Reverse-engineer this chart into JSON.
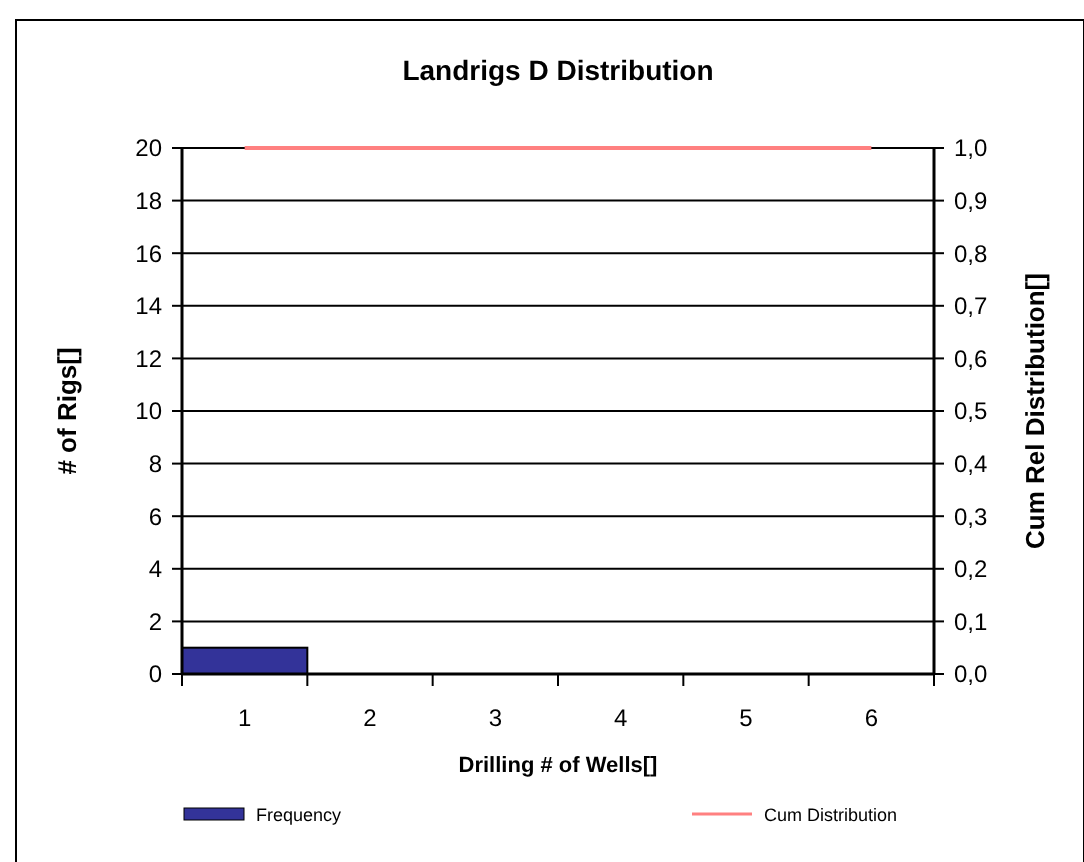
{
  "chart_data": {
    "type": "bar",
    "title": "Landrigs D Distribution",
    "xlabel": "Drilling # of Wells[]",
    "ylabel": "# of Rigs[]",
    "y2label": "Cum Rel Distribution[]",
    "categories": [
      "1",
      "2",
      "3",
      "4",
      "5",
      "6"
    ],
    "series": [
      {
        "name": "Frequency",
        "color": "#333399",
        "values": [
          1,
          0,
          0,
          0,
          0,
          0
        ]
      },
      {
        "name": "Cum Distribution",
        "type": "line",
        "axis": "y2",
        "color": "#ff8080",
        "values": [
          1,
          1,
          1,
          1,
          1,
          1
        ]
      }
    ],
    "ylim": [
      0,
      20
    ],
    "yticks": [
      0,
      2,
      4,
      6,
      8,
      10,
      12,
      14,
      16,
      18,
      20
    ],
    "y2lim": [
      0,
      1
    ],
    "y2ticks": [
      {
        "value": 0,
        "label": "0,0"
      },
      {
        "value": 0.1,
        "label": "0,1"
      },
      {
        "value": 0.2,
        "label": "0,2"
      },
      {
        "value": 0.3,
        "label": "0,3"
      },
      {
        "value": 0.4,
        "label": "0,4"
      },
      {
        "value": 0.5,
        "label": "0,5"
      },
      {
        "value": 0.6,
        "label": "0,6"
      },
      {
        "value": 0.7,
        "label": "0,7"
      },
      {
        "value": 0.8,
        "label": "0,8"
      },
      {
        "value": 0.9,
        "label": "0,9"
      },
      {
        "value": 1,
        "label": "1,0"
      }
    ],
    "grid": "y",
    "legend": "bottom",
    "marker": "none",
    "line_style": "solid"
  }
}
